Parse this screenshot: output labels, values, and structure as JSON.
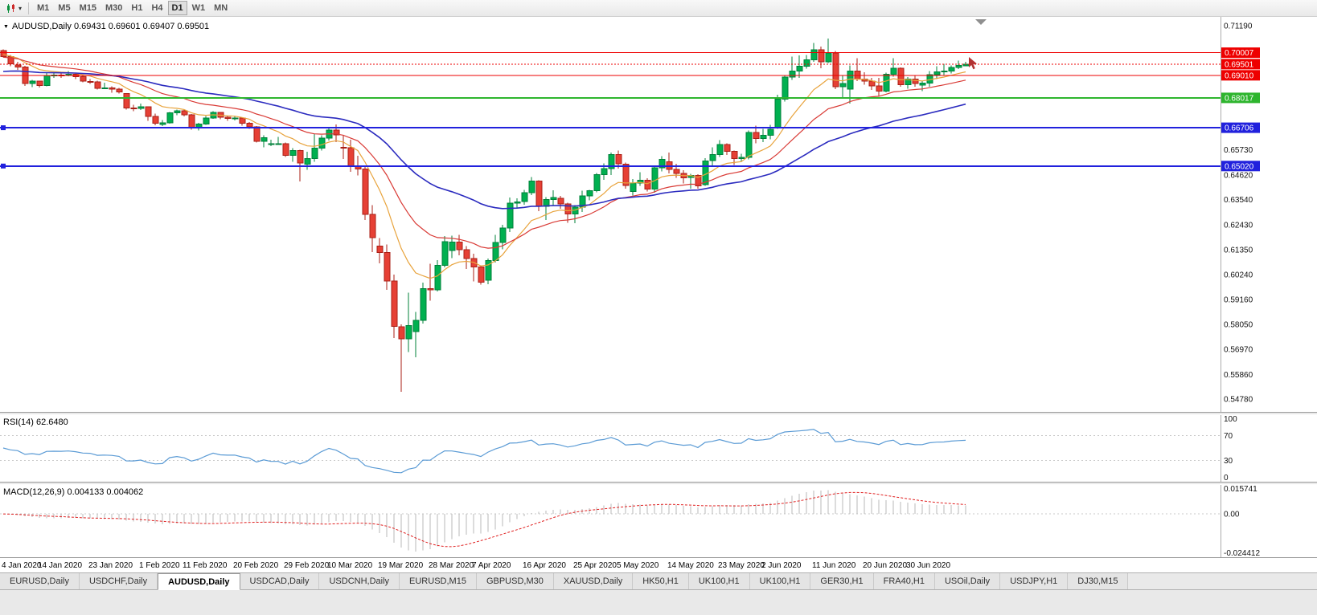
{
  "toolbar": {
    "timeframes": [
      "M1",
      "M5",
      "M15",
      "M30",
      "H1",
      "H4",
      "D1",
      "W1",
      "MN"
    ],
    "active_timeframe": "D1"
  },
  "chart": {
    "header_text": "AUDUSD,Daily 0.69431 0.69601 0.69407 0.69501",
    "symbol": "AUDUSD",
    "period": "Daily",
    "open": "0.69431",
    "high": "0.69601",
    "low": "0.69407",
    "close": "0.69501"
  },
  "tabs": {
    "items": [
      "EURUSD,Daily",
      "USDCHF,Daily",
      "AUDUSD,Daily",
      "USDCAD,Daily",
      "USDCNH,Daily",
      "EURUSD,M15",
      "GBPUSD,M30",
      "XAUUSD,Daily",
      "HK50,H1",
      "UK100,H1",
      "UK100,H1",
      "GER30,H1",
      "FRA40,H1",
      "USOil,Daily",
      "USDJPY,H1",
      "DJ30,M15"
    ],
    "active_index": 2
  },
  "chart_data": {
    "type": "candlestick",
    "symbol": "AUDUSD",
    "timeframe": "Daily",
    "up_color": "#00b050",
    "up_border": "#00813a",
    "down_color": "#e64035",
    "down_border": "#aa1f16",
    "price_axis": {
      "plot_max": 0.7158,
      "plot_min": 0.5421,
      "labels": [
        "0.71190",
        "0.65730",
        "0.64620",
        "0.63540",
        "0.62430",
        "0.61350",
        "0.60240",
        "0.59160",
        "0.58050",
        "0.56970",
        "0.55860",
        "0.54780"
      ]
    },
    "hlines": [
      {
        "price": 0.70007,
        "label": "0.70007",
        "color": "#ee0000",
        "width": 1,
        "style": "solid"
      },
      {
        "price": 0.69501,
        "label": "0.69501",
        "color": "#ee0000",
        "width": 1,
        "style": "dotted",
        "role": "current-bid"
      },
      {
        "price": 0.6901,
        "label": "0.69010",
        "color": "#ee0000",
        "width": 1,
        "style": "solid"
      },
      {
        "price": 0.68017,
        "label": "0.68017",
        "color": "#2eb52e",
        "width": 2,
        "style": "solid"
      },
      {
        "price": 0.66706,
        "label": "0.66706",
        "color": "#2121dd",
        "width": 2,
        "style": "solid",
        "handle": true
      },
      {
        "price": 0.6502,
        "label": "0.65020",
        "color": "#2121dd",
        "width": 2,
        "style": "solid",
        "handle": true
      }
    ],
    "moving_averages": [
      {
        "period": 10,
        "color": "#e8a33c",
        "width": 1.2,
        "seed": 0.6995
      },
      {
        "period": 21,
        "color": "#d93a35",
        "width": 1.2,
        "seed": 0.698
      },
      {
        "period": 45,
        "color": "#2b2bbf",
        "width": 1.6,
        "seed": 0.6915
      }
    ],
    "rsi": {
      "label": "RSI(14) 62.6480",
      "period": 14,
      "value": 62.648,
      "color": "#5b9bd5",
      "levels": [
        {
          "value": 100,
          "label": "100",
          "line": false
        },
        {
          "value": 70,
          "label": "70",
          "line": true
        },
        {
          "value": 30,
          "label": "30",
          "line": true
        },
        {
          "value": 0,
          "label": "0",
          "line": false
        }
      ]
    },
    "macd": {
      "label": "MACD(12,26,9) 0.004133 0.004062",
      "fast": 12,
      "slow": 26,
      "signal": 9,
      "value": 0.004133,
      "signal_value": 0.004062,
      "hist_color": "#b8b8b8",
      "signal_color": "#e02020",
      "axis": {
        "max": 0.015741,
        "min": -0.024412,
        "labels": [
          {
            "value": 0.015741,
            "label": "0.015741"
          },
          {
            "value": 0,
            "label": "0.00"
          },
          {
            "value": -0.024412,
            "label": "-0.024412"
          }
        ]
      }
    },
    "date_ticks": [
      {
        "i": 1,
        "label": "4 Jan 2020"
      },
      {
        "i": 8,
        "label": "14 Jan 2020"
      },
      {
        "i": 15,
        "label": "23 Jan 2020"
      },
      {
        "i": 22,
        "label": "1 Feb 2020"
      },
      {
        "i": 28,
        "label": "11 Feb 2020"
      },
      {
        "i": 35,
        "label": "20 Feb 2020"
      },
      {
        "i": 42,
        "label": "29 Feb 2020"
      },
      {
        "i": 48,
        "label": "10 Mar 2020"
      },
      {
        "i": 55,
        "label": "19 Mar 2020"
      },
      {
        "i": 62,
        "label": "28 Mar 2020"
      },
      {
        "i": 68,
        "label": "7 Apr 2020"
      },
      {
        "i": 75,
        "label": "16 Apr 2020"
      },
      {
        "i": 82,
        "label": "25 Apr 2020"
      },
      {
        "i": 88,
        "label": "5 May 2020"
      },
      {
        "i": 95,
        "label": "14 May 2020"
      },
      {
        "i": 102,
        "label": "23 May 2020"
      },
      {
        "i": 108,
        "label": "2 Jun 2020"
      },
      {
        "i": 115,
        "label": "11 Jun 2020"
      },
      {
        "i": 122,
        "label": "20 Jun 2020"
      },
      {
        "i": 128,
        "label": "30 Jun 2020"
      }
    ],
    "candles": [
      [
        0.701,
        0.7015,
        0.698,
        0.6984
      ],
      [
        0.6984,
        0.699,
        0.694,
        0.6951
      ],
      [
        0.6946,
        0.696,
        0.6925,
        0.6937
      ],
      [
        0.6937,
        0.6942,
        0.6855,
        0.6865
      ],
      [
        0.6865,
        0.688,
        0.6849,
        0.6875
      ],
      [
        0.6875,
        0.6878,
        0.6848,
        0.6856
      ],
      [
        0.6856,
        0.691,
        0.6853,
        0.69
      ],
      [
        0.6898,
        0.6912,
        0.689,
        0.6902
      ],
      [
        0.6902,
        0.691,
        0.689,
        0.6901
      ],
      [
        0.6901,
        0.692,
        0.6897,
        0.6905
      ],
      [
        0.6905,
        0.6913,
        0.6885,
        0.6895
      ],
      [
        0.6895,
        0.69,
        0.687,
        0.6875
      ],
      [
        0.6873,
        0.6884,
        0.6863,
        0.6872
      ],
      [
        0.6872,
        0.6878,
        0.6838,
        0.6843
      ],
      [
        0.6843,
        0.6868,
        0.684,
        0.6845
      ],
      [
        0.6845,
        0.6852,
        0.6825,
        0.6841
      ],
      [
        0.6841,
        0.6845,
        0.682,
        0.6828
      ],
      [
        0.682,
        0.6823,
        0.675,
        0.6757
      ],
      [
        0.6757,
        0.6772,
        0.6744,
        0.6756
      ],
      [
        0.6756,
        0.6776,
        0.6749,
        0.6762
      ],
      [
        0.6762,
        0.6765,
        0.67,
        0.672
      ],
      [
        0.672,
        0.6733,
        0.6682,
        0.669
      ],
      [
        0.6685,
        0.6705,
        0.6678,
        0.6692
      ],
      [
        0.6692,
        0.674,
        0.6688,
        0.6736
      ],
      [
        0.6736,
        0.675,
        0.6725,
        0.6745
      ],
      [
        0.6745,
        0.675,
        0.672,
        0.6727
      ],
      [
        0.6727,
        0.673,
        0.6662,
        0.6673
      ],
      [
        0.667,
        0.6692,
        0.6658,
        0.6687
      ],
      [
        0.6687,
        0.6722,
        0.6683,
        0.6714
      ],
      [
        0.6714,
        0.6744,
        0.671,
        0.6738
      ],
      [
        0.6738,
        0.674,
        0.6707,
        0.6716
      ],
      [
        0.6716,
        0.6723,
        0.67,
        0.6712
      ],
      [
        0.6712,
        0.672,
        0.6703,
        0.6713
      ],
      [
        0.6713,
        0.6715,
        0.668,
        0.669
      ],
      [
        0.669,
        0.6695,
        0.6665,
        0.6675
      ],
      [
        0.6675,
        0.6677,
        0.6605,
        0.6611
      ],
      [
        0.6611,
        0.6638,
        0.6585,
        0.6627
      ],
      [
        0.66,
        0.6618,
        0.6589,
        0.6601
      ],
      [
        0.6601,
        0.663,
        0.6595,
        0.6601
      ],
      [
        0.6601,
        0.6605,
        0.6542,
        0.6549
      ],
      [
        0.6549,
        0.658,
        0.652,
        0.657
      ],
      [
        0.657,
        0.6573,
        0.6434,
        0.6515
      ],
      [
        0.651,
        0.6565,
        0.6485,
        0.6535
      ],
      [
        0.6535,
        0.6645,
        0.652,
        0.6581
      ],
      [
        0.6581,
        0.6638,
        0.657,
        0.6625
      ],
      [
        0.6625,
        0.667,
        0.6615,
        0.6661
      ],
      [
        0.6661,
        0.6685,
        0.6608,
        0.6639
      ],
      [
        0.6585,
        0.6636,
        0.6533,
        0.6582
      ],
      [
        0.6582,
        0.6618,
        0.6477,
        0.6501
      ],
      [
        0.6501,
        0.6548,
        0.646,
        0.6489
      ],
      [
        0.6489,
        0.6503,
        0.6265,
        0.629
      ],
      [
        0.629,
        0.633,
        0.6123,
        0.6187
      ],
      [
        0.615,
        0.6185,
        0.6075,
        0.6121
      ],
      [
        0.6121,
        0.6157,
        0.5958,
        0.5997
      ],
      [
        0.5997,
        0.6025,
        0.5745,
        0.5796
      ],
      [
        0.5796,
        0.5805,
        0.551,
        0.5742
      ],
      [
        0.5742,
        0.5945,
        0.5684,
        0.58
      ],
      [
        0.5775,
        0.586,
        0.5661,
        0.5824
      ],
      [
        0.5824,
        0.599,
        0.581,
        0.5963
      ],
      [
        0.5963,
        0.6072,
        0.591,
        0.5958
      ],
      [
        0.5958,
        0.6088,
        0.5951,
        0.6065
      ],
      [
        0.6065,
        0.6194,
        0.6057,
        0.617
      ],
      [
        0.613,
        0.6196,
        0.6097,
        0.6168
      ],
      [
        0.6168,
        0.62,
        0.611,
        0.6134
      ],
      [
        0.6134,
        0.615,
        0.605,
        0.6095
      ],
      [
        0.6095,
        0.6116,
        0.5995,
        0.6059
      ],
      [
        0.6059,
        0.6066,
        0.598,
        0.5992
      ],
      [
        0.6,
        0.6095,
        0.5982,
        0.6087
      ],
      [
        0.6087,
        0.62,
        0.6077,
        0.6166
      ],
      [
        0.6166,
        0.6244,
        0.6136,
        0.623
      ],
      [
        0.623,
        0.6363,
        0.6211,
        0.6339
      ],
      [
        0.6339,
        0.636,
        0.632,
        0.6345
      ],
      [
        0.6345,
        0.6398,
        0.6332,
        0.6385
      ],
      [
        0.6385,
        0.6454,
        0.6375,
        0.6436
      ],
      [
        0.6436,
        0.644,
        0.6303,
        0.6325
      ],
      [
        0.6325,
        0.6365,
        0.6265,
        0.6355
      ],
      [
        0.6355,
        0.6395,
        0.633,
        0.6364
      ],
      [
        0.636,
        0.637,
        0.6315,
        0.6335
      ],
      [
        0.6335,
        0.634,
        0.6253,
        0.6292
      ],
      [
        0.6292,
        0.633,
        0.625,
        0.6321
      ],
      [
        0.6321,
        0.6393,
        0.63,
        0.637
      ],
      [
        0.637,
        0.6398,
        0.6351,
        0.6393
      ],
      [
        0.6393,
        0.6472,
        0.6387,
        0.6465
      ],
      [
        0.6465,
        0.6514,
        0.6441,
        0.649
      ],
      [
        0.649,
        0.6562,
        0.6462,
        0.6552
      ],
      [
        0.6552,
        0.657,
        0.649,
        0.6511
      ],
      [
        0.6511,
        0.6518,
        0.6402,
        0.6417
      ],
      [
        0.639,
        0.6445,
        0.6372,
        0.6428
      ],
      [
        0.6428,
        0.6475,
        0.6414,
        0.644
      ],
      [
        0.644,
        0.6448,
        0.639,
        0.6401
      ],
      [
        0.6401,
        0.65,
        0.6385,
        0.6494
      ],
      [
        0.6494,
        0.6546,
        0.6478,
        0.6531
      ],
      [
        0.652,
        0.6561,
        0.647,
        0.6487
      ],
      [
        0.6487,
        0.6512,
        0.645,
        0.647
      ],
      [
        0.647,
        0.6483,
        0.6425,
        0.6451
      ],
      [
        0.6451,
        0.6468,
        0.6403,
        0.6461
      ],
      [
        0.6461,
        0.6466,
        0.6402,
        0.6414
      ],
      [
        0.642,
        0.6536,
        0.6415,
        0.6525
      ],
      [
        0.6525,
        0.6585,
        0.6505,
        0.6552
      ],
      [
        0.6552,
        0.6616,
        0.6542,
        0.6597
      ],
      [
        0.6597,
        0.6602,
        0.6551,
        0.6566
      ],
      [
        0.6566,
        0.657,
        0.6506,
        0.6535
      ],
      [
        0.6535,
        0.6556,
        0.6522,
        0.654
      ],
      [
        0.654,
        0.6659,
        0.6532,
        0.6649
      ],
      [
        0.6649,
        0.668,
        0.6602,
        0.6624
      ],
      [
        0.6624,
        0.6665,
        0.6608,
        0.6638
      ],
      [
        0.6638,
        0.6684,
        0.6619,
        0.6664
      ],
      [
        0.667,
        0.6815,
        0.6665,
        0.6797
      ],
      [
        0.6797,
        0.69,
        0.6785,
        0.6894
      ],
      [
        0.6894,
        0.6983,
        0.688,
        0.692
      ],
      [
        0.692,
        0.6988,
        0.689,
        0.694
      ],
      [
        0.694,
        0.699,
        0.693,
        0.6969
      ],
      [
        0.6969,
        0.7043,
        0.696,
        0.7014
      ],
      [
        0.7014,
        0.7028,
        0.6932,
        0.6961
      ],
      [
        0.6961,
        0.7063,
        0.6955,
        0.6999
      ],
      [
        0.6999,
        0.7008,
        0.684,
        0.6851
      ],
      [
        0.6851,
        0.6902,
        0.68,
        0.6865
      ],
      [
        0.684,
        0.6945,
        0.6776,
        0.692
      ],
      [
        0.692,
        0.6977,
        0.6875,
        0.6884
      ],
      [
        0.6884,
        0.6915,
        0.686,
        0.6875
      ],
      [
        0.6875,
        0.689,
        0.6837,
        0.6855
      ],
      [
        0.6855,
        0.689,
        0.681,
        0.6832
      ],
      [
        0.6832,
        0.6912,
        0.6827,
        0.6905
      ],
      [
        0.6905,
        0.6976,
        0.6895,
        0.6932
      ],
      [
        0.6932,
        0.6935,
        0.685,
        0.686
      ],
      [
        0.686,
        0.6894,
        0.6842,
        0.6885
      ],
      [
        0.6885,
        0.6898,
        0.685,
        0.6864
      ],
      [
        0.6858,
        0.6878,
        0.6832,
        0.6866
      ],
      [
        0.6866,
        0.6919,
        0.685,
        0.6903
      ],
      [
        0.6903,
        0.694,
        0.6884,
        0.6916
      ],
      [
        0.6916,
        0.6952,
        0.6902,
        0.6919
      ],
      [
        0.6919,
        0.6944,
        0.6909,
        0.6935
      ],
      [
        0.6935,
        0.6966,
        0.6928,
        0.6944
      ],
      [
        0.69431,
        0.69601,
        0.69407,
        0.69501
      ]
    ]
  }
}
